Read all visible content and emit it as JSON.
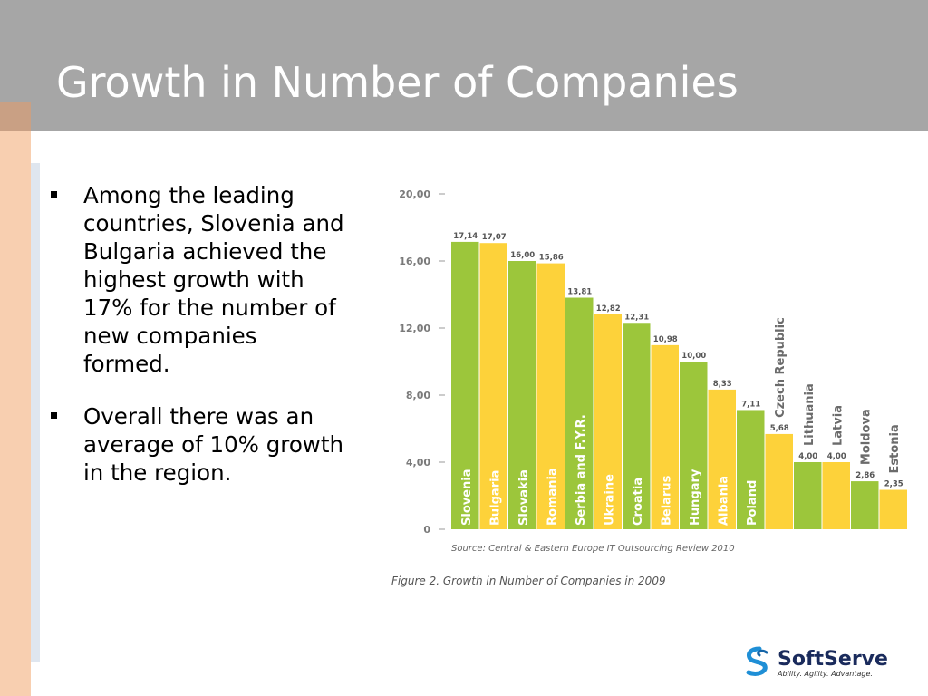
{
  "slide": {
    "title": "Growth in Number of Companies",
    "bullets": [
      "Among the leading countries, Slovenia and Bulgaria achieved the highest growth with 17% for the number of new companies formed.",
      "Overall there was an average of 10% growth in the region."
    ]
  },
  "chart_data": {
    "type": "bar",
    "categories": [
      "Slovenia",
      "Bulgaria",
      "Slovakia",
      "Romania",
      "Serbia and F.Y.R.",
      "Ukraine",
      "Croatia",
      "Belarus",
      "Hungary",
      "Albania",
      "Poland",
      "Czech Republic",
      "Lithuania",
      "Latvia",
      "Moldova",
      "Estonia"
    ],
    "values": [
      17.14,
      17.07,
      16.0,
      15.86,
      13.81,
      12.82,
      12.31,
      10.98,
      10.0,
      8.33,
      7.11,
      5.68,
      4.0,
      4.0,
      2.86,
      2.35
    ],
    "value_labels": [
      "17,14",
      "17,07",
      "16,00",
      "15,86",
      "13,81",
      "12,82",
      "12,31",
      "10,98",
      "10,00",
      "8,33",
      "7,11",
      "5,68",
      "4,00",
      "4,00",
      "2,86",
      "2,35"
    ],
    "yticks": [
      0,
      4,
      8,
      12,
      16,
      20
    ],
    "ytick_labels": [
      "0",
      "4,00",
      "8,00",
      "12,00",
      "16,00",
      "20,00"
    ],
    "ylim": [
      0,
      20
    ],
    "bar_colors": [
      "#9cc63b",
      "#fdd23a"
    ],
    "source": "Source: Central & Eastern Europe IT Outsourcing Review 2010",
    "caption": "Figure 2. Growth in Number of Companies in 2009",
    "grid": false
  },
  "logo": {
    "name": "SoftServe",
    "tagline": "Ability. Agility. Advantage."
  }
}
